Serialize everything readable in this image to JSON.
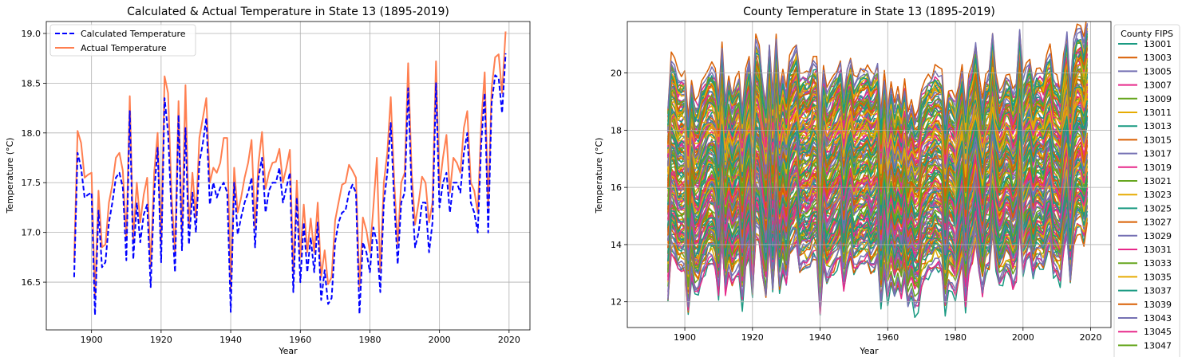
{
  "chart_data": [
    {
      "type": "line",
      "title": "Calculated & Actual Temperature in State 13 (1895-2019)",
      "xlabel": "Year",
      "ylabel": "Temperature (°C)",
      "xlim": [
        1887,
        2026
      ],
      "ylim": [
        16.02,
        19.12
      ],
      "xticks": [
        1900,
        1920,
        1940,
        1960,
        1980,
        2000,
        2020
      ],
      "yticks": [
        16.5,
        17.0,
        17.5,
        18.0,
        18.5,
        19.0
      ],
      "ytick_labels": [
        "16.5",
        "17.0",
        "17.5",
        "18.0",
        "18.5",
        "19.0"
      ],
      "grid": true,
      "legend_position": "upper left",
      "x_start": 1895,
      "series": [
        {
          "name": "Calculated Temperature",
          "color": "#0000ff",
          "style": "dashed",
          "values": [
            16.55,
            17.8,
            17.65,
            17.35,
            17.38,
            17.4,
            16.17,
            17.22,
            16.65,
            16.7,
            17.1,
            17.3,
            17.55,
            17.6,
            17.45,
            16.72,
            18.22,
            16.73,
            17.3,
            16.9,
            17.18,
            17.28,
            16.45,
            17.4,
            17.85,
            16.7,
            18.35,
            18.0,
            17.2,
            16.6,
            18.18,
            16.82,
            18.05,
            16.88,
            17.4,
            17.0,
            17.7,
            17.9,
            18.15,
            17.28,
            17.5,
            17.35,
            17.45,
            17.5,
            17.4,
            16.2,
            17.5,
            16.98,
            17.15,
            17.3,
            17.4,
            17.55,
            16.85,
            17.55,
            17.75,
            17.2,
            17.42,
            17.5,
            17.5,
            17.65,
            17.3,
            17.45,
            17.6,
            16.4,
            17.35,
            16.5,
            17.1,
            16.6,
            16.95,
            16.6,
            17.1,
            16.32,
            16.62,
            16.28,
            16.34,
            16.9,
            17.1,
            17.2,
            17.22,
            17.4,
            17.48,
            17.4,
            16.18,
            16.9,
            16.8,
            16.6,
            17.05,
            16.9,
            16.4,
            17.3,
            17.6,
            18.1,
            17.3,
            16.68,
            17.3,
            17.4,
            18.45,
            17.4,
            16.85,
            17.0,
            17.3,
            17.3,
            16.8,
            17.1,
            18.5,
            17.25,
            17.5,
            17.6,
            17.2,
            17.5,
            17.5,
            17.4,
            17.8,
            18.0,
            17.3,
            17.2,
            17.0,
            17.9,
            18.4,
            17.0,
            18.3,
            18.58,
            18.55,
            18.2,
            18.8
          ]
        },
        {
          "name": "Actual Temperature",
          "color": "#ff7f50",
          "style": "solid",
          "values": [
            16.7,
            18.02,
            17.9,
            17.55,
            17.58,
            17.6,
            16.35,
            17.42,
            16.85,
            16.88,
            17.3,
            17.48,
            17.75,
            17.8,
            17.62,
            16.92,
            18.37,
            16.93,
            17.5,
            17.1,
            17.38,
            17.55,
            16.65,
            17.6,
            18.0,
            16.88,
            18.57,
            18.4,
            17.38,
            16.8,
            18.32,
            17.0,
            18.48,
            17.05,
            17.6,
            17.15,
            17.95,
            18.15,
            18.35,
            17.5,
            17.65,
            17.6,
            17.7,
            17.95,
            17.95,
            16.42,
            17.65,
            17.2,
            17.35,
            17.55,
            17.7,
            17.93,
            17.05,
            17.7,
            18.01,
            17.44,
            17.6,
            17.7,
            17.71,
            17.84,
            17.5,
            17.65,
            17.83,
            16.6,
            17.52,
            16.75,
            17.28,
            16.8,
            17.14,
            16.8,
            17.3,
            16.55,
            16.82,
            16.48,
            16.55,
            17.12,
            17.3,
            17.48,
            17.5,
            17.68,
            17.62,
            17.55,
            16.45,
            17.15,
            17.02,
            16.8,
            17.25,
            17.75,
            16.6,
            17.5,
            17.8,
            18.36,
            17.5,
            16.88,
            17.5,
            17.6,
            18.7,
            17.6,
            17.08,
            17.3,
            17.56,
            17.5,
            17.1,
            17.3,
            18.72,
            17.45,
            17.75,
            17.98,
            17.4,
            17.75,
            17.7,
            17.6,
            18.05,
            18.22,
            17.5,
            17.42,
            17.2,
            18.1,
            18.61,
            17.25,
            18.45,
            18.76,
            18.79,
            18.4,
            19.02
          ]
        }
      ]
    },
    {
      "type": "line",
      "title": "County Temperature in State 13 (1895-2019)",
      "xlabel": "Year",
      "ylabel": "Temperature (°C)",
      "xlim": [
        1883,
        2026
      ],
      "ylim": [
        11.1,
        21.8
      ],
      "xticks": [
        1900,
        1920,
        1940,
        1960,
        1980,
        2000,
        2020
      ],
      "yticks": [
        12,
        14,
        16,
        18,
        20
      ],
      "grid": true,
      "legend_title": "County FIPS",
      "legend_position": "outside right",
      "num_series": 159,
      "band_low": 12.0,
      "band_high": 20.8,
      "palette": [
        "#1a9a82",
        "#d95f02",
        "#7570b3",
        "#e7298a",
        "#66a61e",
        "#e6ab02"
      ],
      "legend_entries": [
        "13001",
        "13003",
        "13005",
        "13007",
        "13009",
        "13011",
        "13013",
        "13015",
        "13017",
        "13019",
        "13021",
        "13023",
        "13025",
        "13027",
        "13029",
        "13031",
        "13033",
        "13035",
        "13037",
        "13039",
        "13043",
        "13045",
        "13047"
      ]
    }
  ]
}
